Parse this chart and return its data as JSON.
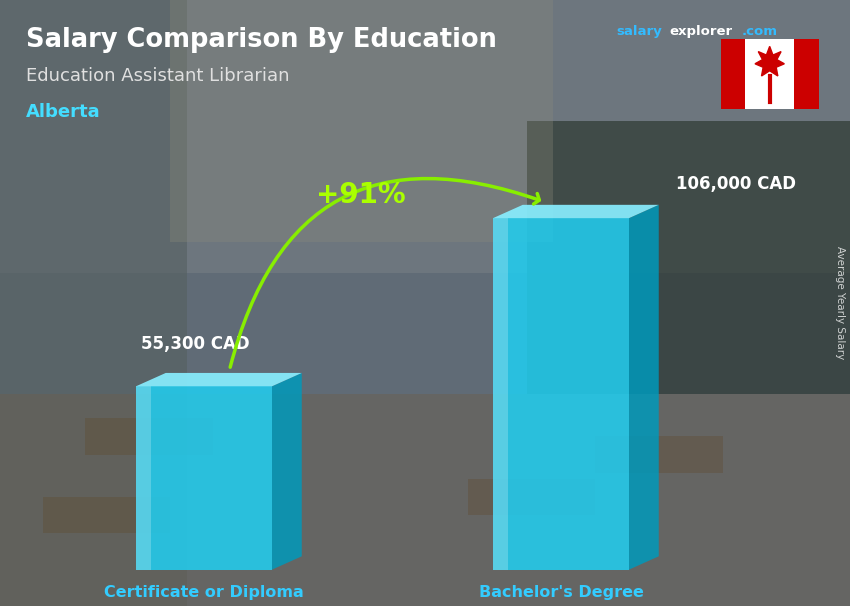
{
  "title": "Salary Comparison By Education",
  "subtitle": "Education Assistant Librarian",
  "location": "Alberta",
  "categories": [
    "Certificate or Diploma",
    "Bachelor's Degree"
  ],
  "values": [
    55300,
    106000
  ],
  "labels": [
    "55,300 CAD",
    "106,000 CAD"
  ],
  "pct_change": "+91%",
  "bar_front_color": "#22CCEE",
  "bar_top_color": "#88EEFF",
  "bar_side_color": "#0099BB",
  "title_color": "#FFFFFF",
  "subtitle_color": "#E0E0E0",
  "location_color": "#44DDFF",
  "label_color": "#FFFFFF",
  "category_color": "#33CCFF",
  "pct_color": "#AAFF00",
  "arrow_color": "#88EE00",
  "watermark": "Average Yearly Salary",
  "fig_width": 8.5,
  "fig_height": 6.06,
  "bg_color": "#8896A0"
}
